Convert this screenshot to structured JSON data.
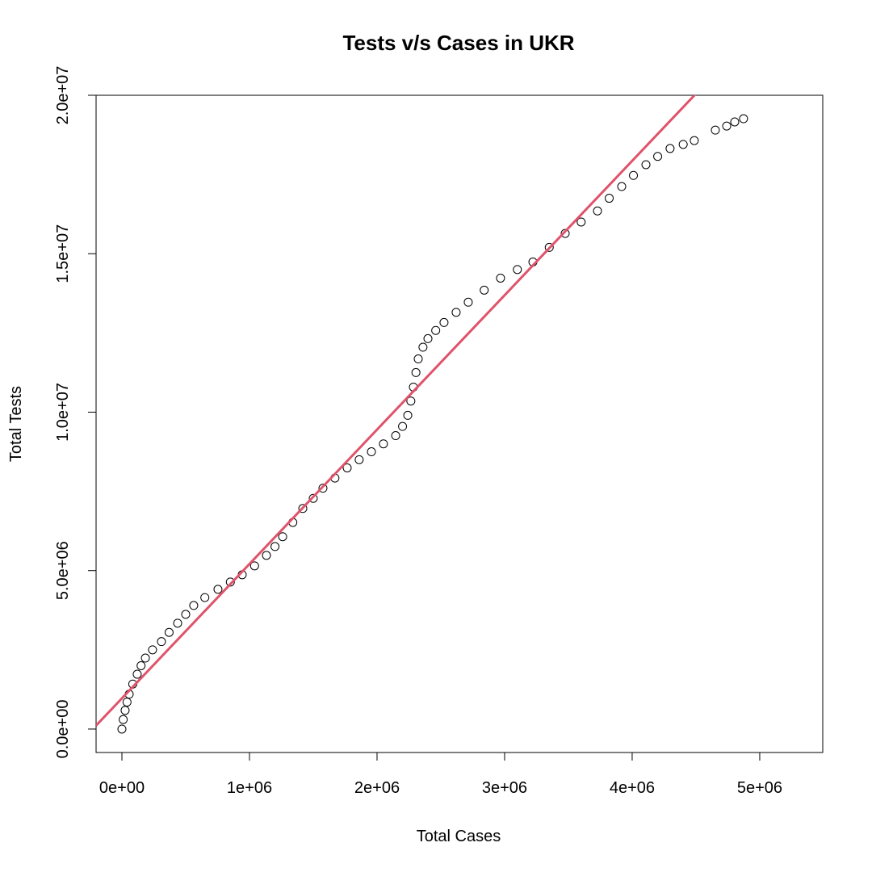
{
  "chart_data": {
    "type": "scatter",
    "title": "Tests v/s Cases in UKR",
    "x_label": "Total Cases",
    "y_label": "Total Tests",
    "xlim": [
      -202500,
      5494000
    ],
    "ylim": [
      -740000,
      20000000
    ],
    "xticks": [
      {
        "value": 0,
        "label": "0e+00"
      },
      {
        "value": 1000000,
        "label": "1e+06"
      },
      {
        "value": 2000000,
        "label": "2e+06"
      },
      {
        "value": 3000000,
        "label": "3e+06"
      },
      {
        "value": 4000000,
        "label": "4e+06"
      },
      {
        "value": 5000000,
        "label": "5e+06"
      }
    ],
    "yticks": [
      {
        "value": 0,
        "label": "0.0e+00"
      },
      {
        "value": 5000000,
        "label": "5.0e+06"
      },
      {
        "value": 10000000,
        "label": "1.0e+07"
      },
      {
        "value": 15000000,
        "label": "1.5e+07"
      },
      {
        "value": 20000000,
        "label": "2.0e+07"
      }
    ],
    "point_color": "#000000",
    "x": [
      0,
      10000,
      25000,
      40000,
      57000,
      85000,
      120000,
      150000,
      184000,
      240000,
      310000,
      370000,
      437000,
      500000,
      563000,
      650000,
      753000,
      850000,
      943000,
      1040000,
      1133000,
      1200000,
      1260000,
      1340000,
      1418000,
      1500000,
      1576000,
      1670000,
      1766000,
      1860000,
      1956000,
      2050000,
      2146000,
      2200000,
      2241000,
      2265000,
      2285000,
      2305000,
      2323000,
      2360000,
      2399000,
      2460000,
      2525000,
      2620000,
      2715000,
      2840000,
      2968000,
      3100000,
      3222000,
      3350000,
      3475000,
      3600000,
      3728000,
      3820000,
      3918000,
      4010000,
      4108000,
      4200000,
      4297000,
      4400000,
      4487000,
      4652000,
      4741000,
      4804000,
      4873000
    ],
    "y": [
      0,
      300000,
      590000,
      850000,
      1100000,
      1420000,
      1730000,
      2000000,
      2240000,
      2500000,
      2760000,
      3050000,
      3340000,
      3620000,
      3900000,
      4150000,
      4410000,
      4640000,
      4870000,
      5150000,
      5480000,
      5760000,
      6070000,
      6520000,
      6960000,
      7280000,
      7600000,
      7920000,
      8240000,
      8500000,
      8750000,
      9000000,
      9260000,
      9550000,
      9900000,
      10350000,
      10790000,
      11250000,
      11680000,
      12050000,
      12320000,
      12580000,
      12830000,
      13150000,
      13470000,
      13850000,
      14230000,
      14500000,
      14740000,
      15200000,
      15640000,
      16000000,
      16350000,
      16750000,
      17120000,
      17470000,
      17810000,
      18070000,
      18320000,
      18450000,
      18570000,
      18900000,
      19030000,
      19160000,
      19260000
    ],
    "fit_line": {
      "color": "#DF536B",
      "intercept": 970000,
      "slope": 4.24
    }
  }
}
